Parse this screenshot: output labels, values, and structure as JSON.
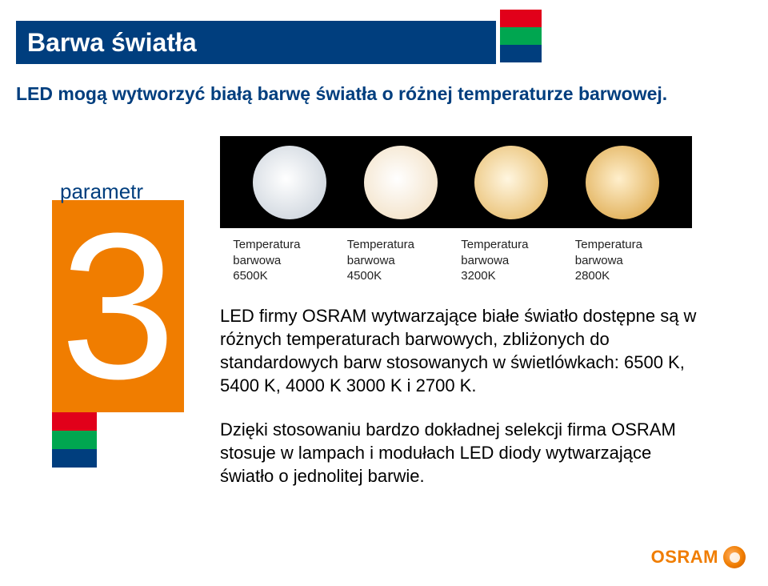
{
  "title": "Barwa światła",
  "subtitle": "LED mogą wytworzyć białą barwę światła o różnej temperaturze barwowej.",
  "accent_colors": {
    "red": "#e1001a",
    "green": "#00a650",
    "blue": "#003e7e"
  },
  "temp_image": {
    "background": "#000000",
    "dots": [
      {
        "gradient_inner": "#ffffff",
        "gradient_outer": "#cfd6de"
      },
      {
        "gradient_inner": "#ffffff",
        "gradient_outer": "#f3e2c8"
      },
      {
        "gradient_inner": "#fff6e0",
        "gradient_outer": "#e9c073"
      },
      {
        "gradient_inner": "#ffefcc",
        "gradient_outer": "#e0ae55"
      }
    ]
  },
  "temp_captions": [
    {
      "line1": "Temperatura",
      "line2": "barwowa",
      "line3": "6500K"
    },
    {
      "line1": "Temperatura",
      "line2": "barwowa",
      "line3": "4500K"
    },
    {
      "line1": "Temperatura",
      "line2": "barwowa",
      "line3": "3200K"
    },
    {
      "line1": "Temperatura",
      "line2": "barwowa",
      "line3": "2800K"
    }
  ],
  "param": {
    "label": "parametr",
    "number": "3",
    "orange": "#f07d00"
  },
  "body": {
    "p1": "LED firmy OSRAM wytwarzające białe światło dostępne są w różnych temperaturach barwowych, zbliżonych do standardowych barw stosowanych w świetlówkach: 6500 K, 5400 K, 4000 K 3000 K i 2700 K.",
    "p2": "Dzięki stosowaniu bardzo dokładnej selekcji firma OSRAM stosuje w lampach i modułach LED diody wytwarzające światło o jednolitej barwie."
  },
  "logo": {
    "text": "OSRAM",
    "color": "#f07d00"
  }
}
